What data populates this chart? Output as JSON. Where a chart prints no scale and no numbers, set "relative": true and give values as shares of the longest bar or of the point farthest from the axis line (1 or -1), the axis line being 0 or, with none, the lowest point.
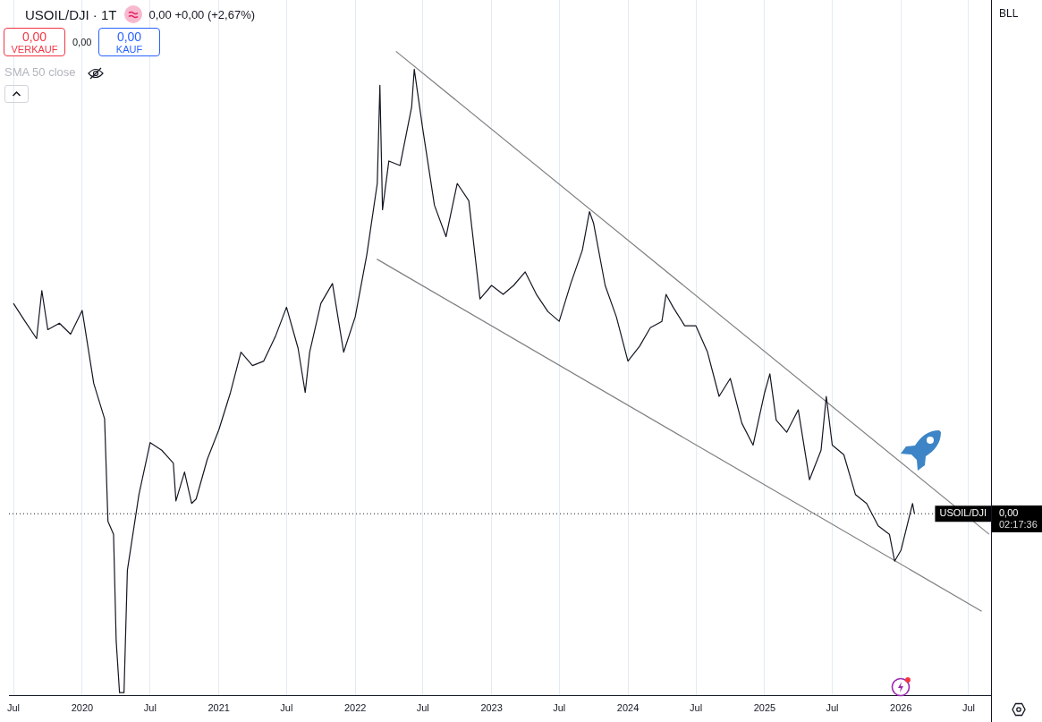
{
  "chart_data": {
    "type": "line",
    "title": "USOIL/DJI · 1T",
    "relative": true,
    "grid": "x",
    "xlim": [
      "2019-06-19",
      "2026-08-30"
    ],
    "xticks": [
      {
        "value": "2019-07-01",
        "label": "Jul"
      },
      {
        "value": "2020-01-01",
        "label": "2020"
      },
      {
        "value": "2020-07-01",
        "label": "Jul"
      },
      {
        "value": "2021-01-01",
        "label": "2021"
      },
      {
        "value": "2021-07-01",
        "label": "Jul"
      },
      {
        "value": "2022-01-01",
        "label": "2022"
      },
      {
        "value": "2022-07-01",
        "label": "Jul"
      },
      {
        "value": "2023-01-01",
        "label": "2023"
      },
      {
        "value": "2023-07-01",
        "label": "Jul"
      },
      {
        "value": "2024-01-01",
        "label": "2024"
      },
      {
        "value": "2024-07-01",
        "label": "Jul"
      },
      {
        "value": "2025-01-01",
        "label": "2025"
      },
      {
        "value": "2025-07-01",
        "label": "Jul"
      },
      {
        "value": "2026-01-01",
        "label": "2026"
      },
      {
        "value": "2026-07-01",
        "label": "Jul"
      }
    ],
    "series": [
      {
        "color": "#131722",
        "x": [
          "2019-07-01",
          "2019-08-01",
          "2019-09-01",
          "2019-09-15",
          "2019-10-01",
          "2019-11-01",
          "2019-12-01",
          "2020-01-01",
          "2020-02-01",
          "2020-03-01",
          "2020-03-10",
          "2020-03-25",
          "2020-04-01",
          "2020-04-10",
          "2020-04-22",
          "2020-05-01",
          "2020-06-01",
          "2020-07-01",
          "2020-08-01",
          "2020-09-01",
          "2020-09-08",
          "2020-10-01",
          "2020-10-20",
          "2020-11-01",
          "2020-12-01",
          "2021-01-01",
          "2021-02-01",
          "2021-03-01",
          "2021-04-01",
          "2021-05-01",
          "2021-06-01",
          "2021-07-01",
          "2021-08-01",
          "2021-08-20",
          "2021-09-01",
          "2021-10-01",
          "2021-11-01",
          "2021-12-01",
          "2022-01-01",
          "2022-02-01",
          "2022-03-01",
          "2022-03-08",
          "2022-03-15",
          "2022-04-01",
          "2022-05-01",
          "2022-06-01",
          "2022-06-08",
          "2022-07-01",
          "2022-08-01",
          "2022-09-01",
          "2022-10-01",
          "2022-11-01",
          "2022-12-01",
          "2023-01-01",
          "2023-02-01",
          "2023-03-01",
          "2023-04-01",
          "2023-05-01",
          "2023-06-01",
          "2023-07-01",
          "2023-08-01",
          "2023-09-01",
          "2023-09-20",
          "2023-10-01",
          "2023-11-01",
          "2023-12-01",
          "2024-01-01",
          "2024-02-01",
          "2024-03-01",
          "2024-04-01",
          "2024-04-12",
          "2024-05-01",
          "2024-06-01",
          "2024-07-01",
          "2024-08-01",
          "2024-09-01",
          "2024-10-01",
          "2024-11-01",
          "2024-12-01",
          "2025-01-01",
          "2025-01-15",
          "2025-02-01",
          "2025-03-01",
          "2025-04-01",
          "2025-05-01",
          "2025-06-01",
          "2025-06-15",
          "2025-07-01",
          "2025-08-01",
          "2025-09-01",
          "2025-10-01",
          "2025-11-01",
          "2025-12-01",
          "2025-12-15",
          "2026-01-01",
          "2026-02-01",
          "2026-02-06"
        ],
        "values": [
          0.607,
          0.579,
          0.552,
          0.627,
          0.566,
          0.576,
          0.559,
          0.596,
          0.482,
          0.427,
          0.267,
          0.247,
          0.081,
          0,
          0,
          0.191,
          0.309,
          0.39,
          0.378,
          0.358,
          0.299,
          0.344,
          0.295,
          0.302,
          0.364,
          0.41,
          0.468,
          0.531,
          0.51,
          0.517,
          0.555,
          0.601,
          0.537,
          0.468,
          0.531,
          0.607,
          0.638,
          0.531,
          0.586,
          0.683,
          0.794,
          0.947,
          0.753,
          0.829,
          0.822,
          0.913,
          0.972,
          0.878,
          0.76,
          0.711,
          0.794,
          0.767,
          0.614,
          0.635,
          0.621,
          0.635,
          0.656,
          0.621,
          0.594,
          0.579,
          0.638,
          0.69,
          0.75,
          0.732,
          0.635,
          0.586,
          0.517,
          0.54,
          0.569,
          0.579,
          0.621,
          0.601,
          0.572,
          0.572,
          0.531,
          0.462,
          0.49,
          0.42,
          0.386,
          0.468,
          0.497,
          0.425,
          0.406,
          0.441,
          0.332,
          0.378,
          0.462,
          0.386,
          0.371,
          0.309,
          0.295,
          0.26,
          0.247,
          0.205,
          0.222,
          0.295,
          0.279
        ]
      },
      {
        "color": "#808080",
        "x": [
          "2022-04-20",
          "2026-08-25"
        ],
        "values": [
          1.0,
          0.247
        ]
      },
      {
        "color": "#808080",
        "x": [
          "2022-02-28",
          "2026-08-05"
        ],
        "values": [
          0.676,
          0.127
        ]
      }
    ],
    "ref_lines": [
      {
        "axis": "y",
        "value": 0.279,
        "label": "USOIL/DJI",
        "color": "#131722",
        "line_style": "dotted"
      }
    ],
    "annotations": [
      "0,00 +0,00 (+2,67%)",
      "0,00",
      "VERKAUF",
      "0,00",
      "0,00",
      "KAUF",
      "SMA 50 close",
      "BLL",
      "0,00",
      "02:17:36"
    ]
  }
}
